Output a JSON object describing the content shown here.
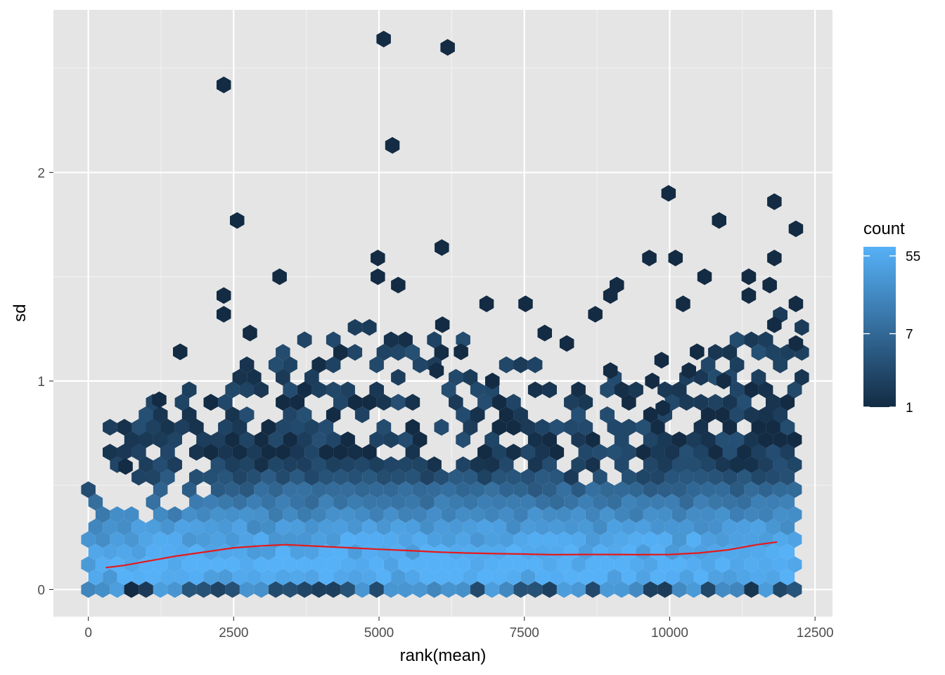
{
  "chart_data": {
    "type": "hexbin",
    "xlabel": "rank(mean)",
    "ylabel": "sd",
    "xlim": [
      -600,
      12800
    ],
    "ylim": [
      -0.13,
      2.78
    ],
    "x_ticks": [
      0,
      2500,
      5000,
      7500,
      10000,
      12500
    ],
    "x_tick_labels": [
      "0",
      "2500",
      "5000",
      "7500",
      "10000",
      "12500"
    ],
    "y_ticks": [
      0,
      1,
      2
    ],
    "y_tick_labels": [
      "0",
      "1",
      "2"
    ],
    "grid": true,
    "panel_background": "#e5e5e5",
    "legend": {
      "title": "count",
      "position": "right",
      "scale": "log",
      "range": [
        1,
        70
      ],
      "breaks": [
        1,
        7,
        55
      ],
      "break_labels": [
        "1",
        "7",
        "55"
      ],
      "color_low": "#132b43",
      "color_high": "#56b1f7"
    },
    "smooth_line": {
      "color": "#e41a1c",
      "x": [
        300,
        600,
        1000,
        1500,
        2000,
        2500,
        3000,
        3400,
        4000,
        4500,
        5000,
        5500,
        6000,
        6500,
        7000,
        7500,
        8000,
        8500,
        9000,
        9500,
        10000,
        10500,
        11000,
        11500,
        11850
      ],
      "y": [
        0.105,
        0.115,
        0.135,
        0.16,
        0.18,
        0.2,
        0.21,
        0.215,
        0.207,
        0.2,
        0.193,
        0.187,
        0.18,
        0.175,
        0.172,
        0.17,
        0.167,
        0.168,
        0.168,
        0.167,
        0.168,
        0.175,
        0.19,
        0.215,
        0.228
      ]
    },
    "outlier_hexes": [
      {
        "x": 5080,
        "y": 2.64
      },
      {
        "x": 6180,
        "y": 2.6
      },
      {
        "x": 2330,
        "y": 2.42
      },
      {
        "x": 5230,
        "y": 2.13
      },
      {
        "x": 9980,
        "y": 1.9
      },
      {
        "x": 11800,
        "y": 1.86
      },
      {
        "x": 2560,
        "y": 1.77
      },
      {
        "x": 10850,
        "y": 1.77
      },
      {
        "x": 12170,
        "y": 1.73
      },
      {
        "x": 6080,
        "y": 1.64
      },
      {
        "x": 4980,
        "y": 1.59
      },
      {
        "x": 9650,
        "y": 1.59
      },
      {
        "x": 10100,
        "y": 1.59
      },
      {
        "x": 11800,
        "y": 1.59
      },
      {
        "x": 3290,
        "y": 1.5
      },
      {
        "x": 4980,
        "y": 1.5
      },
      {
        "x": 10600,
        "y": 1.5
      },
      {
        "x": 11360,
        "y": 1.5
      },
      {
        "x": 5330,
        "y": 1.46
      },
      {
        "x": 9090,
        "y": 1.46
      },
      {
        "x": 11720,
        "y": 1.46
      },
      {
        "x": 2330,
        "y": 1.41
      },
      {
        "x": 8980,
        "y": 1.41
      },
      {
        "x": 11360,
        "y": 1.41
      },
      {
        "x": 6850,
        "y": 1.37
      },
      {
        "x": 7520,
        "y": 1.37
      },
      {
        "x": 12170,
        "y": 1.37
      },
      {
        "x": 10230,
        "y": 1.37
      },
      {
        "x": 2330,
        "y": 1.32
      },
      {
        "x": 8720,
        "y": 1.32
      },
      {
        "x": 6090,
        "y": 1.27
      },
      {
        "x": 11800,
        "y": 1.27
      },
      {
        "x": 2780,
        "y": 1.23
      },
      {
        "x": 7850,
        "y": 1.23
      },
      {
        "x": 6410,
        "y": 1.14
      },
      {
        "x": 1580,
        "y": 1.14
      },
      {
        "x": 8230,
        "y": 1.18
      },
      {
        "x": 10470,
        "y": 1.14
      },
      {
        "x": 8980,
        "y": 1.05
      },
      {
        "x": 5990,
        "y": 1.05
      },
      {
        "x": 9860,
        "y": 1.1
      },
      {
        "x": 12170,
        "y": 1.18
      },
      {
        "x": 10330,
        "y": 1.05
      },
      {
        "x": 6950,
        "y": 1.0
      },
      {
        "x": 9700,
        "y": 1.0
      },
      {
        "x": 10930,
        "y": 1.0
      },
      {
        "x": 1220,
        "y": 0.91
      },
      {
        "x": 9880,
        "y": 0.87
      },
      {
        "x": 640,
        "y": 0.59
      },
      {
        "x": 740,
        "y": 0.0
      }
    ]
  }
}
